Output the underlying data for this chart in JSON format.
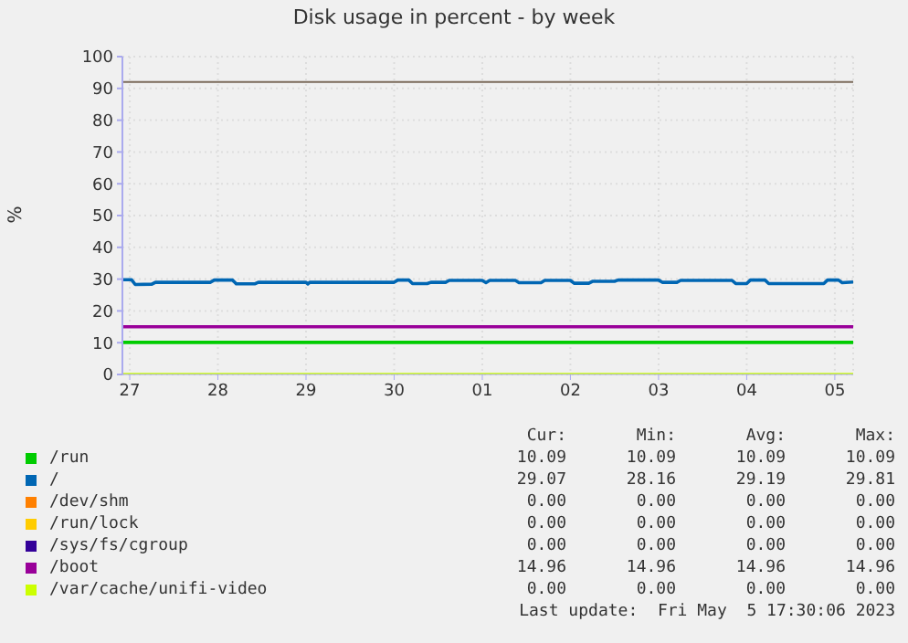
{
  "chart_data": {
    "type": "line",
    "title": "Disk usage in percent - by week",
    "ylabel": "%",
    "xlim": [
      "2023-04-26T22:00",
      "2023-05-05T05:00"
    ],
    "xticks": [
      {
        "value": "2023-04-27",
        "label": "27"
      },
      {
        "value": "2023-04-28",
        "label": "28"
      },
      {
        "value": "2023-04-29",
        "label": "29"
      },
      {
        "value": "2023-04-30",
        "label": "30"
      },
      {
        "value": "2023-05-01",
        "label": "01"
      },
      {
        "value": "2023-05-02",
        "label": "02"
      },
      {
        "value": "2023-05-03",
        "label": "03"
      },
      {
        "value": "2023-05-04",
        "label": "04"
      },
      {
        "value": "2023-05-05",
        "label": "05"
      }
    ],
    "ylim": [
      0,
      100
    ],
    "yticks": [
      0,
      10,
      20,
      30,
      40,
      50,
      60,
      70,
      80,
      90,
      100
    ],
    "grid": true,
    "marker": "none",
    "line_style": "solid",
    "ref_lines": [
      {
        "axis": "y",
        "value": 92,
        "color": "#7a6a5a"
      }
    ],
    "series": [
      {
        "name": "/run",
        "color": "#00cc00",
        "x": [
          "2023-04-26T22:00",
          "2023-05-05T05:00"
        ],
        "values": [
          10.1,
          10.1
        ]
      },
      {
        "name": "/",
        "color": "#0066b3",
        "x": [
          "2023-04-26T22:00",
          "2023-04-27T00:30",
          "2023-04-27T01:30",
          "2023-04-27T06:00",
          "2023-04-27T07:00",
          "2023-04-27T22:00",
          "2023-04-27T23:00",
          "2023-04-28T04:00",
          "2023-04-28T05:00",
          "2023-04-28T10:00",
          "2023-04-28T11:00",
          "2023-04-29T00:00",
          "2023-04-29T00:30",
          "2023-04-29T01:00",
          "2023-04-30T00:00",
          "2023-04-30T01:00",
          "2023-04-30T04:00",
          "2023-04-30T05:00",
          "2023-04-30T09:00",
          "2023-04-30T10:00",
          "2023-04-30T14:00",
          "2023-04-30T15:00",
          "2023-05-01T00:00",
          "2023-05-01T01:00",
          "2023-05-01T02:00",
          "2023-05-01T09:00",
          "2023-05-01T10:00",
          "2023-05-01T16:00",
          "2023-05-01T17:00",
          "2023-05-02T00:00",
          "2023-05-02T01:00",
          "2023-05-02T05:00",
          "2023-05-02T06:00",
          "2023-05-02T12:00",
          "2023-05-02T13:00",
          "2023-05-03T00:00",
          "2023-05-03T01:00",
          "2023-05-03T05:00",
          "2023-05-03T06:00",
          "2023-05-03T20:00",
          "2023-05-03T21:00",
          "2023-05-04T00:00",
          "2023-05-04T01:00",
          "2023-05-04T05:00",
          "2023-05-04T06:00",
          "2023-05-04T21:00",
          "2023-05-04T22:00",
          "2023-05-05T01:00",
          "2023-05-05T02:00",
          "2023-05-05T05:00"
        ],
        "values": [
          29.8,
          29.8,
          28.3,
          28.4,
          29.0,
          29.0,
          29.7,
          29.7,
          28.5,
          28.5,
          29.0,
          29.0,
          28.5,
          29.0,
          29.0,
          29.7,
          29.7,
          28.6,
          28.6,
          29.0,
          29.0,
          29.6,
          29.6,
          28.9,
          29.6,
          29.6,
          28.9,
          28.9,
          29.6,
          29.6,
          28.7,
          28.7,
          29.3,
          29.3,
          29.7,
          29.7,
          29.0,
          29.0,
          29.6,
          29.6,
          28.6,
          28.6,
          29.7,
          29.7,
          28.6,
          28.6,
          29.7,
          29.7,
          28.9,
          29.1
        ]
      },
      {
        "name": "/dev/shm",
        "color": "#ff8000",
        "values": [
          null,
          null
        ]
      },
      {
        "name": "/run/lock",
        "color": "#ffcc00",
        "values": [
          null,
          null
        ]
      },
      {
        "name": "/sys/fs/cgroup",
        "color": "#330099",
        "values": [
          null,
          null
        ]
      },
      {
        "name": "/boot",
        "color": "#990099",
        "x": [
          "2023-04-26T22:00",
          "2023-05-05T05:00"
        ],
        "values": [
          15.0,
          15.0
        ]
      },
      {
        "name": "/var/cache/unifi-video",
        "color": "#ccff00",
        "x": [
          "2023-04-26T22:00",
          "2023-05-05T05:00"
        ],
        "values": [
          0,
          0
        ]
      }
    ],
    "legend": "bottom",
    "annotations": [
      "Cur:",
      "Min:",
      "Avg:",
      "Max:",
      "10.09",
      "10.09",
      "10.09",
      "10.09",
      "29.07",
      "28.16",
      "29.19",
      "29.81",
      "0.00",
      "0.00",
      "0.00",
      "0.00",
      "0.00",
      "0.00",
      "0.00",
      "0.00",
      "0.00",
      "0.00",
      "0.00",
      "0.00",
      "14.96",
      "14.96",
      "14.96",
      "14.96",
      "0.00",
      "0.00",
      "0.00",
      "0.00",
      "Last update:  Fri May  5 17:30:06 2023"
    ]
  }
}
